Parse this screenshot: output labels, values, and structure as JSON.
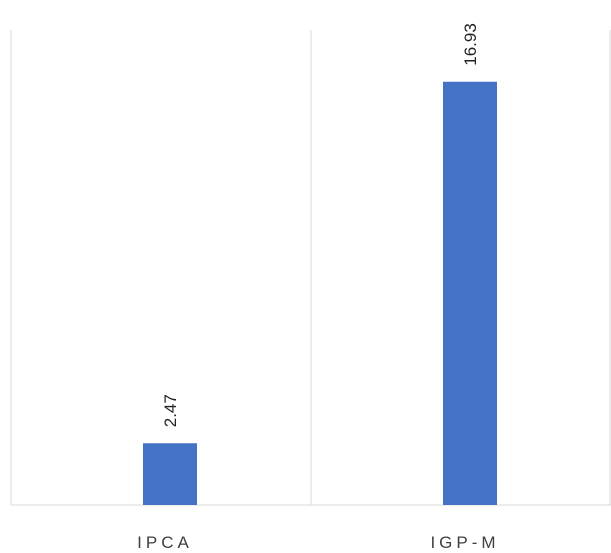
{
  "chart_data": {
    "type": "bar",
    "categories": [
      "IPCA",
      "IGP-M"
    ],
    "values": [
      2.47,
      16.93
    ],
    "data_labels": [
      "2.47",
      "16.93"
    ],
    "title": "",
    "xlabel": "",
    "ylabel": "",
    "ylim": [
      0,
      19
    ],
    "grid": false,
    "legend": "none",
    "bar_color": "#4472C4",
    "axis_color": "#D9D9D9",
    "label_color": "#404040"
  }
}
